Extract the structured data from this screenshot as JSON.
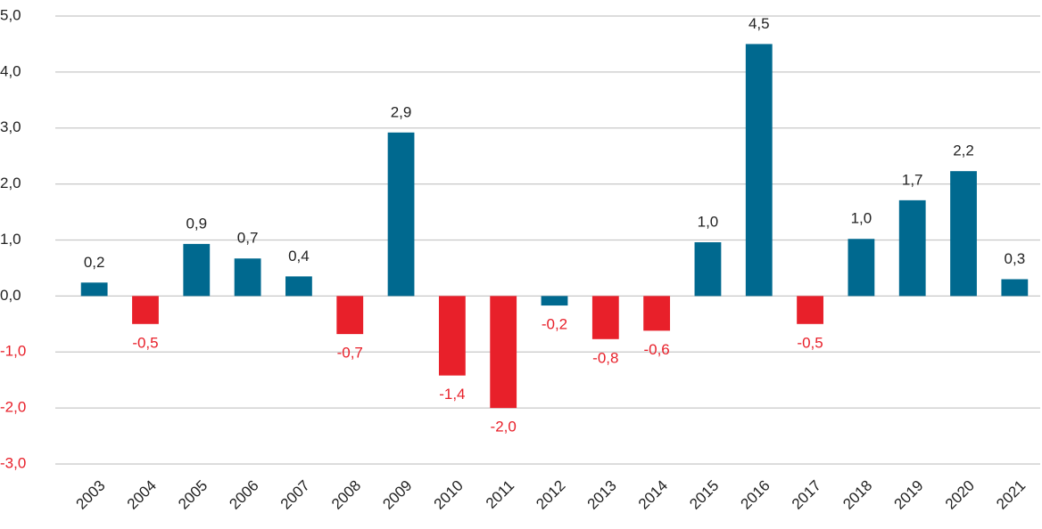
{
  "chart_data": {
    "type": "bar",
    "categories": [
      "2003",
      "2004",
      "2005",
      "2006",
      "2007",
      "2008",
      "2009",
      "2010",
      "2011",
      "2012",
      "2013",
      "2014",
      "2015",
      "2016",
      "2017",
      "2018",
      "2019",
      "2020",
      "2021"
    ],
    "values": [
      0.24,
      -0.5,
      0.93,
      0.67,
      0.35,
      -0.68,
      2.92,
      -1.42,
      -2.0,
      -0.17,
      -0.77,
      -0.62,
      0.96,
      4.5,
      -0.5,
      1.02,
      1.71,
      2.23,
      0.3
    ],
    "value_labels": [
      "0,2",
      "-0,5",
      "0,9",
      "0,7",
      "0,4",
      "-0,7",
      "2,9",
      "-1,4",
      "-2,0",
      "-0,2",
      "-0,8",
      "-0,6",
      "1,0",
      "4,5",
      "-0,5",
      "1,0",
      "1,7",
      "2,2",
      "0,3"
    ],
    "colors": [
      "#00698f",
      "#e8202a",
      "#00698f",
      "#00698f",
      "#00698f",
      "#e8202a",
      "#00698f",
      "#e8202a",
      "#e8202a",
      "#00698f",
      "#e8202a",
      "#e8202a",
      "#00698f",
      "#00698f",
      "#e8202a",
      "#00698f",
      "#00698f",
      "#00698f",
      "#00698f"
    ],
    "negative_label_color": "#e8202a",
    "ylim": [
      -3,
      5
    ],
    "yticks": [
      {
        "value": -3,
        "label": "-3,0"
      },
      {
        "value": -2,
        "label": "-2,0"
      },
      {
        "value": -1,
        "label": "-1,0"
      },
      {
        "value": 0,
        "label": "0,0"
      },
      {
        "value": 1,
        "label": "1,0"
      },
      {
        "value": 2,
        "label": "2,0"
      },
      {
        "value": 3,
        "label": "3,0"
      },
      {
        "value": 4,
        "label": "4,0"
      },
      {
        "value": 5,
        "label": "5,0"
      }
    ],
    "grid": true
  }
}
